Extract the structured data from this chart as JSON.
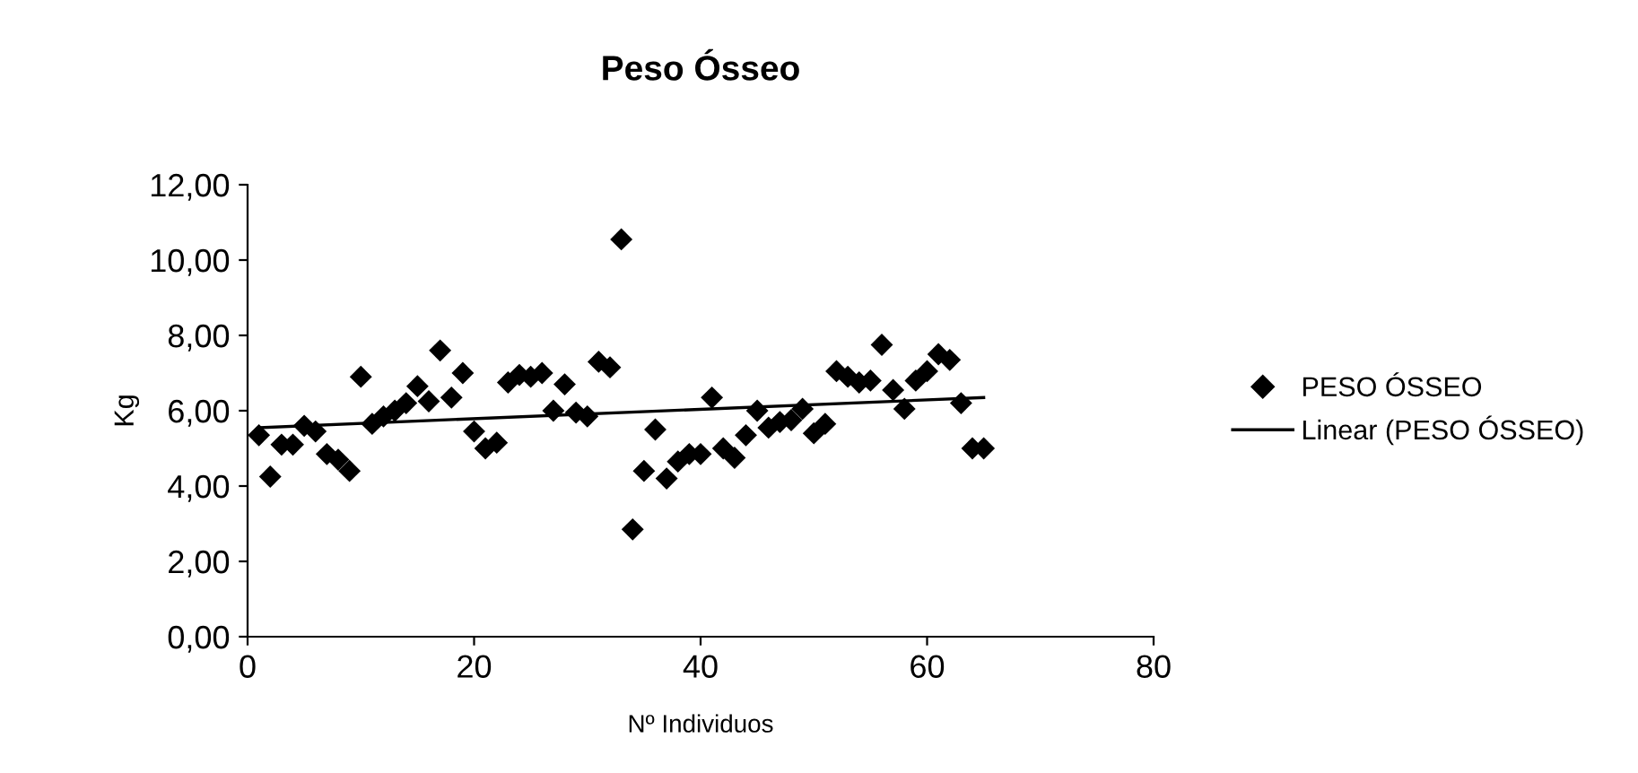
{
  "chart_data": {
    "type": "scatter",
    "title": "Peso Ósseo",
    "xlabel": "Nº Individuos",
    "ylabel": "Kg",
    "xlim": [
      0,
      80
    ],
    "xticks": [
      0,
      20,
      40,
      60,
      80
    ],
    "ylim": [
      0,
      12
    ],
    "yticks": [
      {
        "value": 0,
        "label": "0,00"
      },
      {
        "value": 2,
        "label": "2,00"
      },
      {
        "value": 4,
        "label": "4,00"
      },
      {
        "value": 6,
        "label": "6,00"
      },
      {
        "value": 8,
        "label": "8,00"
      },
      {
        "value": 10,
        "label": "10,00"
      },
      {
        "value": 12,
        "label": "12,00"
      }
    ],
    "grid": false,
    "legend": "right",
    "series": [
      {
        "name": "PESO ÓSSEO",
        "marker": "diamond",
        "color": "#000000",
        "x": [
          1,
          2,
          3,
          4,
          5,
          6,
          7,
          8,
          9,
          10,
          11,
          12,
          13,
          14,
          15,
          16,
          17,
          18,
          19,
          20,
          21,
          22,
          23,
          24,
          25,
          26,
          27,
          28,
          29,
          30,
          31,
          32,
          33,
          34,
          35,
          36,
          37,
          38,
          39,
          40,
          41,
          42,
          43,
          44,
          45,
          46,
          47,
          48,
          49,
          50,
          51,
          52,
          53,
          54,
          55,
          56,
          57,
          58,
          59,
          60,
          61,
          62,
          63,
          64,
          65
        ],
        "values": [
          5.35,
          4.25,
          5.1,
          5.1,
          5.6,
          5.45,
          4.85,
          4.7,
          4.4,
          6.9,
          5.65,
          5.85,
          6.0,
          6.2,
          6.65,
          6.25,
          7.6,
          6.35,
          7.0,
          5.45,
          5.0,
          5.15,
          6.75,
          6.95,
          6.9,
          7.0,
          6.0,
          6.7,
          5.95,
          5.85,
          7.3,
          7.15,
          10.55,
          2.85,
          4.4,
          5.5,
          4.2,
          4.65,
          4.85,
          4.85,
          6.35,
          5.0,
          4.75,
          5.35,
          6.0,
          5.55,
          5.7,
          5.75,
          6.05,
          5.4,
          5.65,
          7.05,
          6.9,
          6.75,
          6.8,
          7.75,
          6.55,
          6.05,
          6.8,
          7.05,
          7.5,
          7.35,
          6.2,
          5.0,
          5.0
        ]
      },
      {
        "name": "Linear (PESO ÓSSEO)",
        "type": "line",
        "marker": "none",
        "line_style": "solid",
        "color": "#000000",
        "x": [
          1,
          65
        ],
        "values": [
          5.55,
          6.35
        ]
      }
    ]
  }
}
